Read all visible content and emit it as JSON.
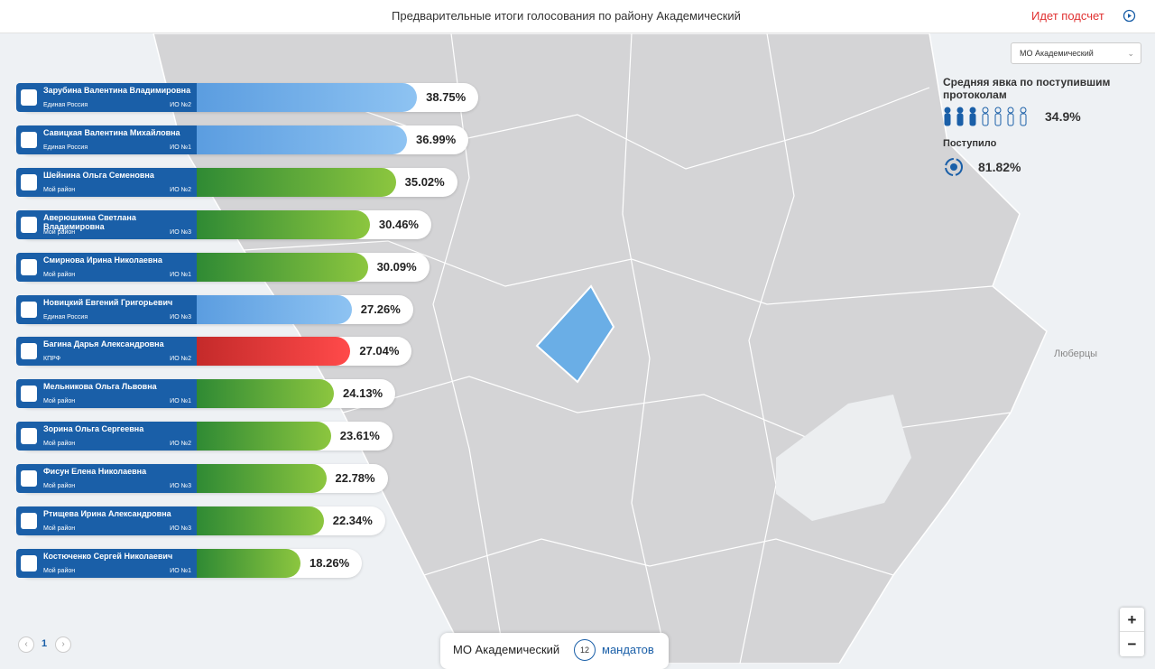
{
  "header": {
    "title": "Предварительные итоги голосования по району Академический",
    "status": "Идет подсчет"
  },
  "candidates": [
    {
      "name": "Зарубина Валентина Владимировна",
      "party": "Единая Россия",
      "district": "ИО №2",
      "percent": 38.75,
      "percent_label": "38.75%"
    },
    {
      "name": "Савицкая Валентина Михайловна",
      "party": "Единая Россия",
      "district": "ИО №1",
      "percent": 36.99,
      "percent_label": "36.99%"
    },
    {
      "name": "Шейнина Ольга Семеновна",
      "party": "Мой район",
      "district": "ИО №2",
      "percent": 35.02,
      "percent_label": "35.02%"
    },
    {
      "name": "Аверюшкина Светлана Владимировна",
      "party": "Мой район",
      "district": "ИО №3",
      "percent": 30.46,
      "percent_label": "30.46%"
    },
    {
      "name": "Смирнова Ирина Николаевна",
      "party": "Мой район",
      "district": "ИО №1",
      "percent": 30.09,
      "percent_label": "30.09%"
    },
    {
      "name": "Новицкий Евгений Григорьевич",
      "party": "Единая Россия",
      "district": "ИО №3",
      "percent": 27.26,
      "percent_label": "27.26%"
    },
    {
      "name": "Багина Дарья Александровна",
      "party": "КПРФ",
      "district": "ИО №2",
      "percent": 27.04,
      "percent_label": "27.04%"
    },
    {
      "name": "Мельникова Ольга Львовна",
      "party": "Мой район",
      "district": "ИО №1",
      "percent": 24.13,
      "percent_label": "24.13%"
    },
    {
      "name": "Зорина Ольга Сергеевна",
      "party": "Мой район",
      "district": "ИО №2",
      "percent": 23.61,
      "percent_label": "23.61%"
    },
    {
      "name": "Фисун Елена Николаевна",
      "party": "Мой район",
      "district": "ИО №3",
      "percent": 22.78,
      "percent_label": "22.78%"
    },
    {
      "name": "Ртищева Ирина Александровна",
      "party": "Мой район",
      "district": "ИО №3",
      "percent": 22.34,
      "percent_label": "22.34%"
    },
    {
      "name": "Костюченко Сергей Николаевич",
      "party": "Мой район",
      "district": "ИО №1",
      "percent": 18.26,
      "percent_label": "18.26%"
    }
  ],
  "pagination": {
    "page": "1"
  },
  "footer": {
    "district": "МО Академический",
    "mandates": "12",
    "mandates_label": "мандатов"
  },
  "panel": {
    "dropdown": "МО Академический",
    "turnout_title": "Средняя явка по поступившим протоколам",
    "turnout": "34.9%",
    "received_title": "Поступило",
    "received": "81.82%"
  },
  "map": {
    "place": "Люберцы"
  },
  "zoom": {
    "in": "+",
    "out": "−"
  }
}
